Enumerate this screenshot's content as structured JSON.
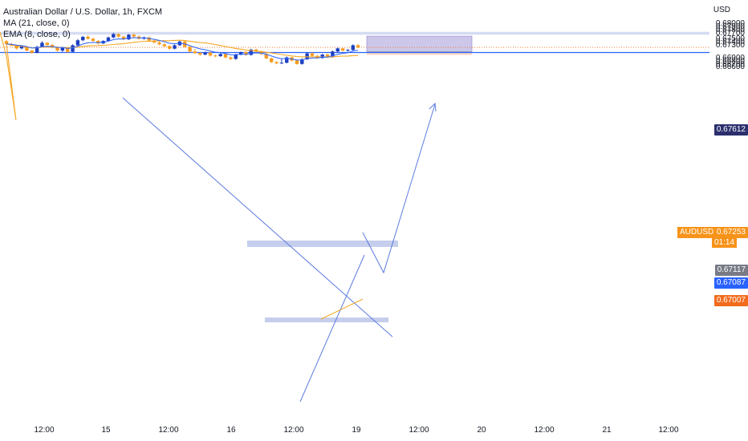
{
  "legend": {
    "title": "Australian Dollar / U.S. Dollar, 1h, FXCM",
    "ma": "MA (21, close, 0)",
    "ema": "EMA (8, close, 0)"
  },
  "currency": "USD",
  "colors": {
    "up": "#1e3fbf",
    "down": "#f79b1d",
    "ma": "#f5a623",
    "ema": "#2962ff",
    "zone": "#b2bde6",
    "target_box": "#9c91d6",
    "stop_box": "#fad6c2",
    "support": "#2962ff",
    "trendline": "#5b7be0"
  },
  "y_ticks": [
    "0.68000",
    "0.67900",
    "0.67800",
    "0.67700",
    "0.67500",
    "0.67400",
    "0.67300",
    "0.66900",
    "0.66800",
    "0.66700",
    "0.66600"
  ],
  "x_ticks": [
    "12:00",
    "15",
    "12:00",
    "16",
    "12:00",
    "19",
    "12:00",
    "20",
    "12:00",
    "21",
    "12:00"
  ],
  "price_tags": {
    "target": "0.67612",
    "symbol": "AUDUSD",
    "last": "0.67253",
    "countdown": "01:14",
    "entry": "0.67117",
    "support": "0.67087",
    "stop": "0.67007"
  },
  "chart_data": {
    "type": "candlestick",
    "symbol": "AUDUSD",
    "timeframe": "1h",
    "ylim": [
      0.6656,
      0.6806
    ],
    "series": [
      {
        "name": "MA (21, close, 0)",
        "values": []
      },
      {
        "name": "EMA (8, close, 0)",
        "values": []
      }
    ],
    "candles": [
      [
        0.6745,
        0.6749,
        0.6733,
        0.6736
      ],
      [
        0.6736,
        0.674,
        0.6728,
        0.6731
      ],
      [
        0.6731,
        0.6734,
        0.6718,
        0.6722
      ],
      [
        0.6722,
        0.6731,
        0.6719,
        0.6728
      ],
      [
        0.6728,
        0.673,
        0.6712,
        0.6715
      ],
      [
        0.6715,
        0.6717,
        0.6705,
        0.6708
      ],
      [
        0.6708,
        0.673,
        0.6706,
        0.6727
      ],
      [
        0.6727,
        0.6745,
        0.6725,
        0.674
      ],
      [
        0.674,
        0.6742,
        0.6731,
        0.6733
      ],
      [
        0.6733,
        0.6736,
        0.6722,
        0.6725
      ],
      [
        0.6725,
        0.6728,
        0.6712,
        0.6715
      ],
      [
        0.6715,
        0.6726,
        0.671,
        0.6724
      ],
      [
        0.6724,
        0.6727,
        0.6708,
        0.6711
      ],
      [
        0.6711,
        0.6735,
        0.6709,
        0.6732
      ],
      [
        0.6732,
        0.6752,
        0.673,
        0.6748
      ],
      [
        0.6748,
        0.6762,
        0.6745,
        0.6759
      ],
      [
        0.6759,
        0.6764,
        0.675,
        0.6753
      ],
      [
        0.6753,
        0.6756,
        0.6744,
        0.6746
      ],
      [
        0.6746,
        0.6749,
        0.6735,
        0.6738
      ],
      [
        0.6738,
        0.6748,
        0.6736,
        0.6746
      ],
      [
        0.6746,
        0.676,
        0.6744,
        0.6757
      ],
      [
        0.6757,
        0.6772,
        0.6755,
        0.6768
      ],
      [
        0.6768,
        0.677,
        0.6757,
        0.676
      ],
      [
        0.676,
        0.6762,
        0.6748,
        0.6751
      ],
      [
        0.6751,
        0.6768,
        0.6749,
        0.6766
      ],
      [
        0.6766,
        0.677,
        0.6757,
        0.676
      ],
      [
        0.676,
        0.6763,
        0.675,
        0.6753
      ],
      [
        0.6753,
        0.676,
        0.675,
        0.6757
      ],
      [
        0.6757,
        0.676,
        0.6744,
        0.6747
      ],
      [
        0.6747,
        0.6752,
        0.6738,
        0.6741
      ],
      [
        0.6741,
        0.6744,
        0.6732,
        0.6735
      ],
      [
        0.6735,
        0.6738,
        0.6726,
        0.6729
      ],
      [
        0.6729,
        0.6732,
        0.6718,
        0.6721
      ],
      [
        0.6721,
        0.6735,
        0.6719,
        0.6732
      ],
      [
        0.6732,
        0.6748,
        0.673,
        0.6744
      ],
      [
        0.6744,
        0.6746,
        0.6724,
        0.6727
      ],
      [
        0.6727,
        0.6729,
        0.6708,
        0.6712
      ],
      [
        0.6712,
        0.672,
        0.6704,
        0.6707
      ],
      [
        0.6707,
        0.671,
        0.6698,
        0.6702
      ],
      [
        0.6702,
        0.6712,
        0.67,
        0.6709
      ],
      [
        0.6709,
        0.6711,
        0.6696,
        0.6699
      ],
      [
        0.6699,
        0.6702,
        0.6694,
        0.6697
      ],
      [
        0.6697,
        0.6708,
        0.6695,
        0.6704
      ],
      [
        0.6704,
        0.6706,
        0.669,
        0.6693
      ],
      [
        0.6693,
        0.6696,
        0.6685,
        0.6688
      ],
      [
        0.6688,
        0.6705,
        0.6686,
        0.6702
      ],
      [
        0.6702,
        0.6712,
        0.67,
        0.671
      ],
      [
        0.671,
        0.6713,
        0.6698,
        0.6701
      ],
      [
        0.6701,
        0.6721,
        0.6699,
        0.6718
      ],
      [
        0.6718,
        0.6721,
        0.6709,
        0.6712
      ],
      [
        0.6712,
        0.6715,
        0.6701,
        0.6704
      ],
      [
        0.6704,
        0.6707,
        0.6688,
        0.669
      ],
      [
        0.669,
        0.6692,
        0.6675,
        0.6678
      ],
      [
        0.6678,
        0.6681,
        0.6671,
        0.6674
      ],
      [
        0.6674,
        0.669,
        0.6672,
        0.6676
      ],
      [
        0.6676,
        0.6696,
        0.6674,
        0.6693
      ],
      [
        0.6693,
        0.6695,
        0.668,
        0.6683
      ],
      [
        0.6683,
        0.6686,
        0.667,
        0.6672
      ],
      [
        0.6672,
        0.669,
        0.667,
        0.6687
      ],
      [
        0.6687,
        0.671,
        0.6685,
        0.6706
      ],
      [
        0.6706,
        0.6709,
        0.6695,
        0.6698
      ],
      [
        0.6698,
        0.6701,
        0.6688,
        0.6691
      ],
      [
        0.6691,
        0.6705,
        0.6689,
        0.6702
      ],
      [
        0.6702,
        0.6705,
        0.6692,
        0.6694
      ],
      [
        0.6694,
        0.6715,
        0.6692,
        0.6712
      ],
      [
        0.6712,
        0.6725,
        0.6709,
        0.6722
      ],
      [
        0.6722,
        0.6724,
        0.6712,
        0.6715
      ],
      [
        0.6715,
        0.672,
        0.6712,
        0.6717
      ],
      [
        0.6717,
        0.6735,
        0.6715,
        0.6732
      ],
      [
        0.6732,
        0.6736,
        0.6723,
        0.6725
      ]
    ],
    "indicators": [
      "MA (21, close, 0)",
      "EMA (8, close, 0)"
    ],
    "annotations": {
      "resistance_zone": [
        0.6766,
        0.6775
      ],
      "long_position": {
        "entry": 0.67117,
        "target": 0.67612,
        "stop": 0.67007
      },
      "support_line": 0.67087,
      "last_price": 0.67253
    }
  }
}
